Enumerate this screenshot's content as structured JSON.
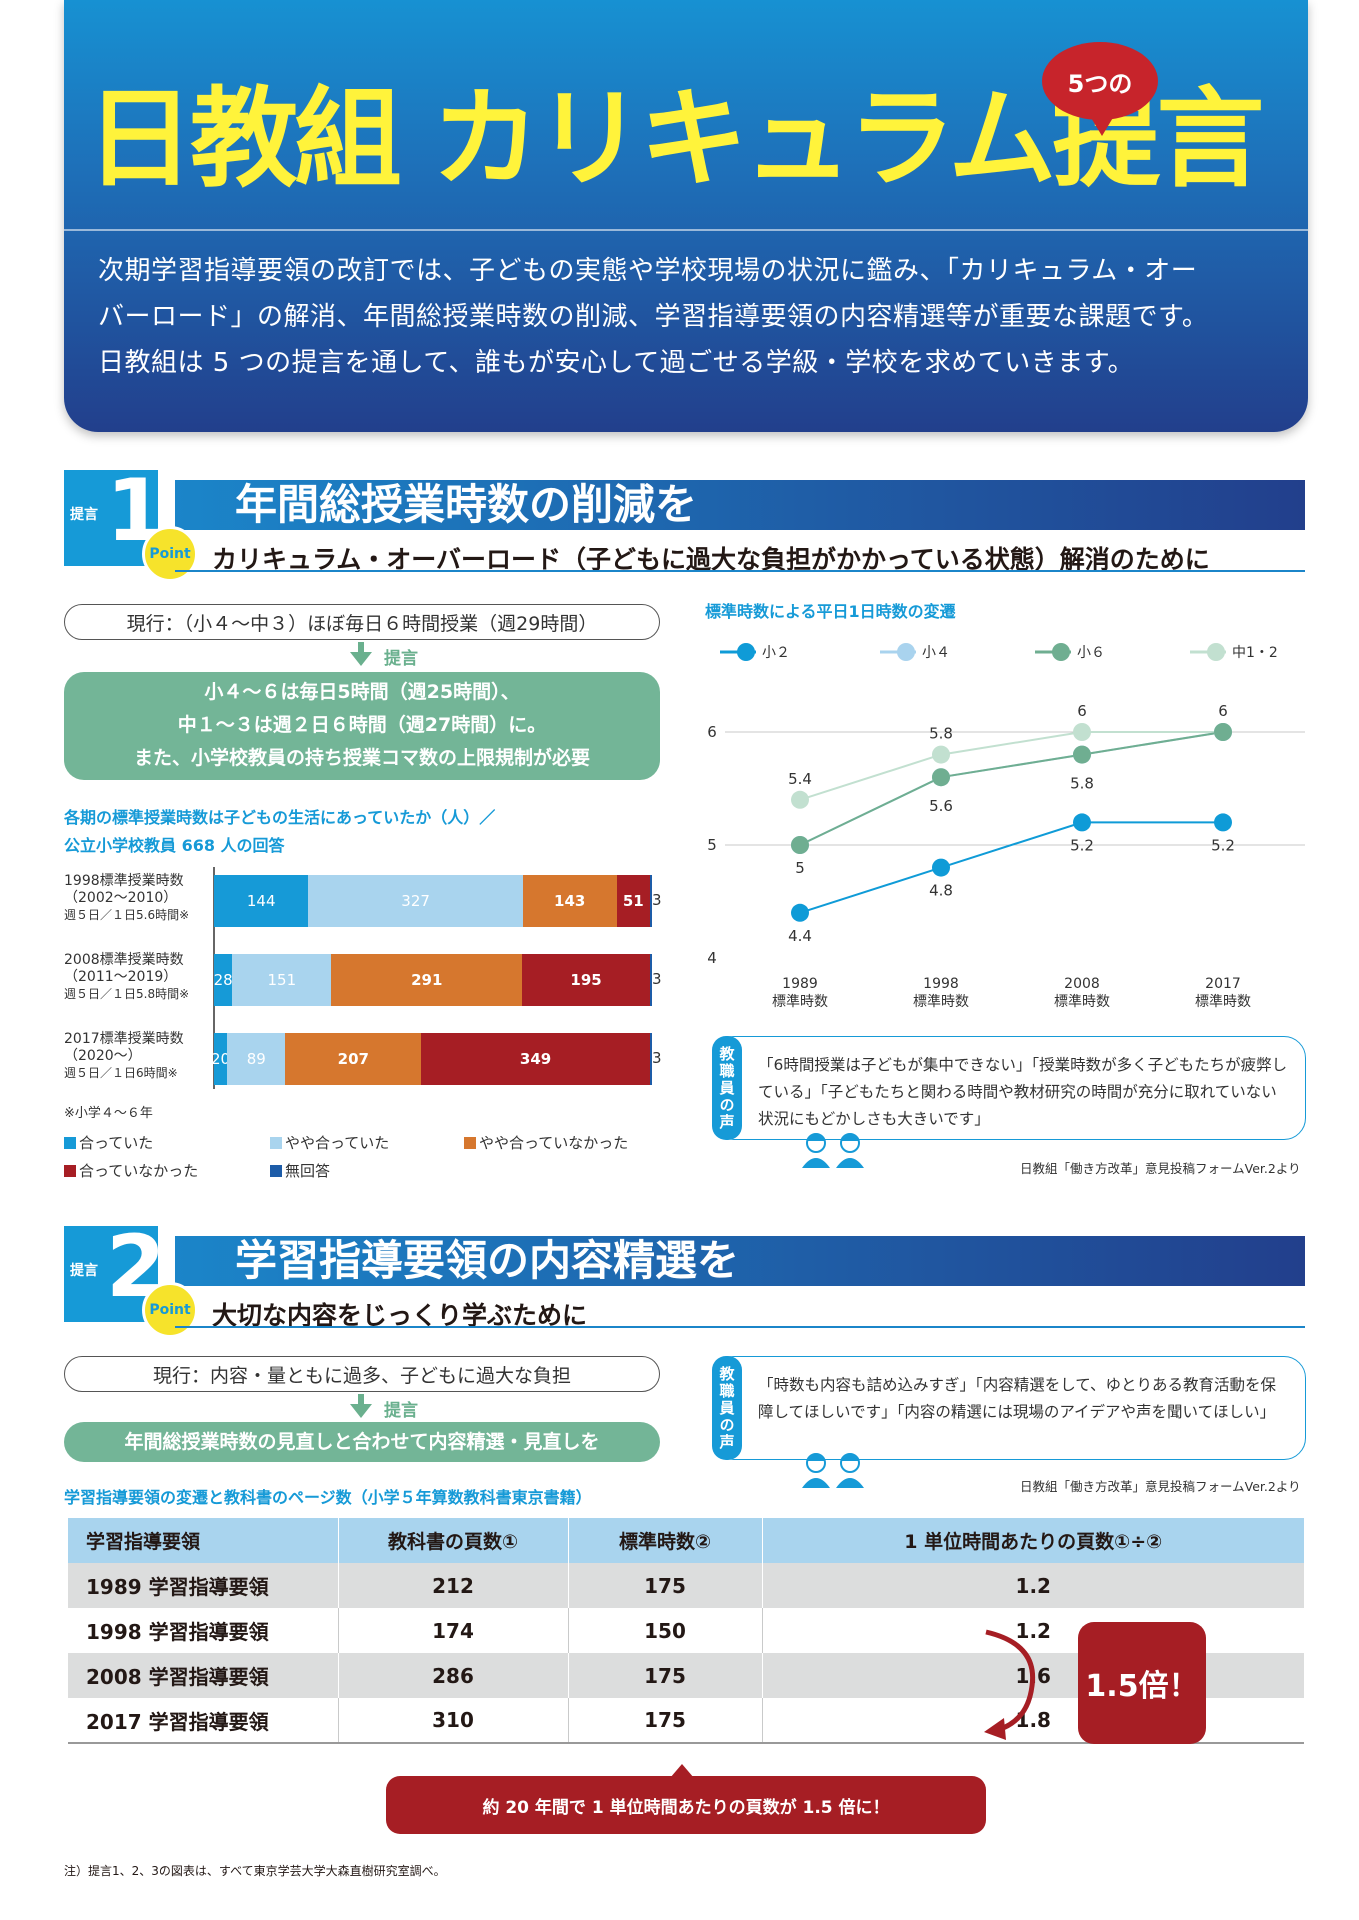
{
  "header": {
    "title": "日教組 カリキュラム提言",
    "bubble": "5つの",
    "intro": [
      "次期学習指導要領の改訂では、子どもの実態や学校現場の状況に鑑み、「カリキュラム・オー",
      "バーロード」の解消、年間総授業時数の削減、学習指導要領の内容精選等が重要な課題です。",
      "日教組は 5 つの提言を通して、誰もが安心して過ごせる学級・学校を求めていきます。"
    ]
  },
  "section1": {
    "badge_label": "提言",
    "badge_num": "1",
    "point": "Point",
    "title": "年間総授業時数の削減を",
    "subtitle": "カリキュラム・オーバーロード（子どもに過大な負担がかかっている状態）解消のために",
    "current": "現行：（小４～中３）ほぼ毎日６時間授業（週29時間）",
    "proposal_label": "提言",
    "proposal_lines": [
      "小４～６は毎日5時間（週25時間）、",
      "中１～３は週２日６時間（週27時間）に。",
      "また、小学校教員の持ち授業コマ数の上限規制が必要"
    ],
    "bar_heading": [
      "各期の標準授業時数は子どもの生活にあっていたか（人）／",
      "公立小学校教員 668 人の回答"
    ],
    "bar_rows": [
      {
        "label1": "1998標準授業時数",
        "label2": "（2002～2010）",
        "label3": "週５日／１日5.6時間※"
      },
      {
        "label1": "2008標準授業時数",
        "label2": "（2011～2019）",
        "label3": "週５日／１日5.8時間※"
      },
      {
        "label1": "2017標準授業時数",
        "label2": "（2020～）",
        "label3": "週５日／１日6時間※"
      }
    ],
    "bar_note": "※小学４～６年",
    "line_heading": "標準時数による平日1日時数の変遷",
    "voice_tab": "教職員の声",
    "voice_text": "「6時間授業は子どもが集中できない」「授業時数が多く子どもたちが疲弊している」「子どもたちと関わる時間や教材研究の時間が充分に取れていない状況にもどかしさも大きいです」",
    "voice_source": "日教組「働き方改革」意見投稿フォームVer.2より"
  },
  "section2": {
    "badge_label": "提言",
    "badge_num": "2",
    "point": "Point",
    "title": "学習指導要領の内容精選を",
    "subtitle": "大切な内容をじっくり学ぶために",
    "current": "現行：内容・量ともに過多、子どもに過大な負担",
    "proposal_label": "提言",
    "proposal": "年間総授業時数の見直しと合わせて内容精選・見直しを",
    "voice_tab": "教職員の声",
    "voice_text": "「時数も内容も詰め込みすぎ」「内容精選をして、ゆとりある教育活動を保障してほしいです」「内容の精選には現場のアイデアや声を聞いてほしい」",
    "voice_source": "日教組「働き方改革」意見投稿フォームVer.2より",
    "table_heading": "学習指導要領の変遷と教科書のページ数（小学５年算数教科書東京書籍）",
    "table_headers": [
      "学習指導要領",
      "教科書の頁数①",
      "標準時数②",
      "1 単位時間あたりの頁数①÷②"
    ],
    "table_rows": [
      [
        "1989 学習指導要領",
        "212",
        "175",
        "1.2"
      ],
      [
        "1998 学習指導要領",
        "174",
        "150",
        "1.2"
      ],
      [
        "2008 学習指導要領",
        "286",
        "175",
        "1.6"
      ],
      [
        "2017 学習指導要領",
        "310",
        "175",
        "1.8"
      ]
    ],
    "badge_ratio": "1.5倍！",
    "bottom_banner": "約 20 年間で 1 単位時間あたりの頁数が 1.5 倍に！"
  },
  "footnote": "注）提言1、2、3の図表は、すべて東京学芸大学大森直樹研究室調べ。",
  "chart_data": [
    {
      "type": "bar",
      "orientation": "horizontal-stacked",
      "title": "各期の標準授業時数は子どもの生活にあっていたか（人）／公立小学校教員 668 人の回答",
      "categories": [
        "1998標準授業時数（2002～2010）",
        "2008標準授業時数（2011～2019）",
        "2017標準授業時数（2020～）"
      ],
      "series": [
        {
          "name": "合っていた",
          "color": "#169ad7",
          "values": [
            144,
            28,
            20
          ]
        },
        {
          "name": "やや合っていた",
          "color": "#a9d4ee",
          "values": [
            327,
            151,
            89
          ]
        },
        {
          "name": "やや合っていなかった",
          "color": "#d6772e",
          "values": [
            143,
            291,
            207
          ]
        },
        {
          "name": "合っていなかった",
          "color": "#a61e24",
          "values": [
            51,
            195,
            349
          ]
        },
        {
          "name": "無回答",
          "color": "#1d5ca8",
          "values": [
            3,
            3,
            3
          ]
        }
      ],
      "total": 668,
      "legend": "bottom"
    },
    {
      "type": "line",
      "title": "標準時数による平日1日時数の変遷",
      "x": [
        "1989",
        "1998",
        "2008",
        "2017"
      ],
      "x_sublabel": "標準時数",
      "ylim": [
        4,
        6
      ],
      "yticks": [
        "4",
        "5",
        "6"
      ],
      "grid": true,
      "legend": "top",
      "series": [
        {
          "name": "小２",
          "color": "#0f9bd7",
          "values": [
            4.4,
            4.8,
            5.2,
            5.2
          ]
        },
        {
          "name": "小４",
          "color": "#a9d3ee",
          "values": [
            5,
            5.6,
            5.8,
            6
          ]
        },
        {
          "name": "小６",
          "color": "#6fae91",
          "values": [
            5,
            5.6,
            5.8,
            6
          ]
        },
        {
          "name": "中1・2",
          "color": "#c2e0d0",
          "values": [
            5.4,
            5.8,
            6,
            6
          ]
        }
      ],
      "point_labels": [
        {
          "value": "4.4"
        },
        {
          "value": "4.8"
        },
        {
          "value": "5.2"
        },
        {
          "value": "5.2"
        },
        {
          "value": "5"
        },
        {
          "value": "5.6"
        },
        {
          "value": "5.8"
        },
        {
          "value": "6"
        },
        {
          "value": "5.4"
        },
        {
          "value": "5.8"
        },
        {
          "value": "6"
        }
      ]
    }
  ]
}
